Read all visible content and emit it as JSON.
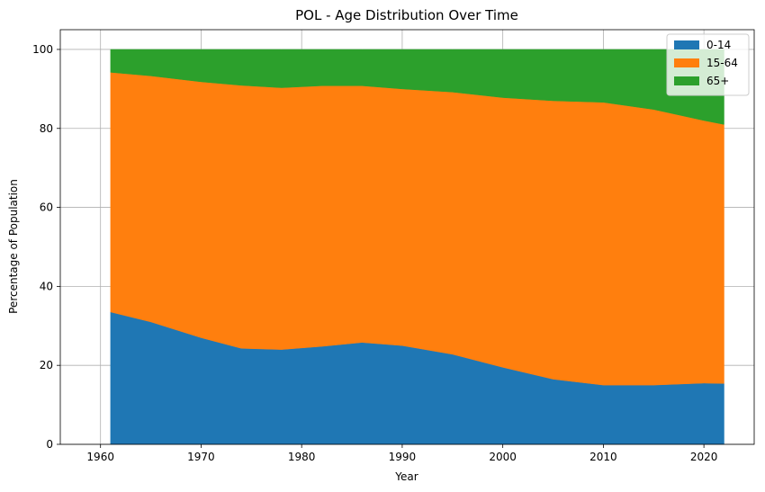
{
  "chart_data": {
    "type": "area",
    "stacked": true,
    "title": "POL - Age Distribution Over Time",
    "xlabel": "Year",
    "ylabel": "Percentage of Population",
    "xlim": [
      1956,
      2025
    ],
    "ylim": [
      0,
      105
    ],
    "x_ticks": [
      1960,
      1970,
      1980,
      1990,
      2000,
      2010,
      2020
    ],
    "y_ticks": [
      0,
      20,
      40,
      60,
      80,
      100
    ],
    "grid": true,
    "legend_position": "top-right",
    "x": [
      1961,
      1965,
      1970,
      1974,
      1978,
      1982,
      1986,
      1990,
      1995,
      2000,
      2005,
      2010,
      2015,
      2020,
      2022
    ],
    "series": [
      {
        "name": "0-14",
        "color": "#1f77b4",
        "values": [
          33.5,
          31.0,
          27.0,
          24.3,
          24.0,
          24.8,
          25.8,
          25.0,
          22.8,
          19.5,
          16.5,
          15.0,
          15.0,
          15.5,
          15.4
        ]
      },
      {
        "name": "15-64",
        "color": "#ff7f0e",
        "values": [
          60.7,
          62.3,
          64.8,
          66.6,
          66.3,
          66.0,
          65.0,
          65.0,
          66.4,
          68.3,
          70.5,
          71.6,
          69.8,
          66.5,
          65.6
        ]
      },
      {
        "name": "65+",
        "color": "#2ca02c",
        "values": [
          5.8,
          6.7,
          8.2,
          9.1,
          9.7,
          9.2,
          9.2,
          10.0,
          10.8,
          12.2,
          13.0,
          13.4,
          15.2,
          18.0,
          19.0
        ]
      }
    ]
  }
}
